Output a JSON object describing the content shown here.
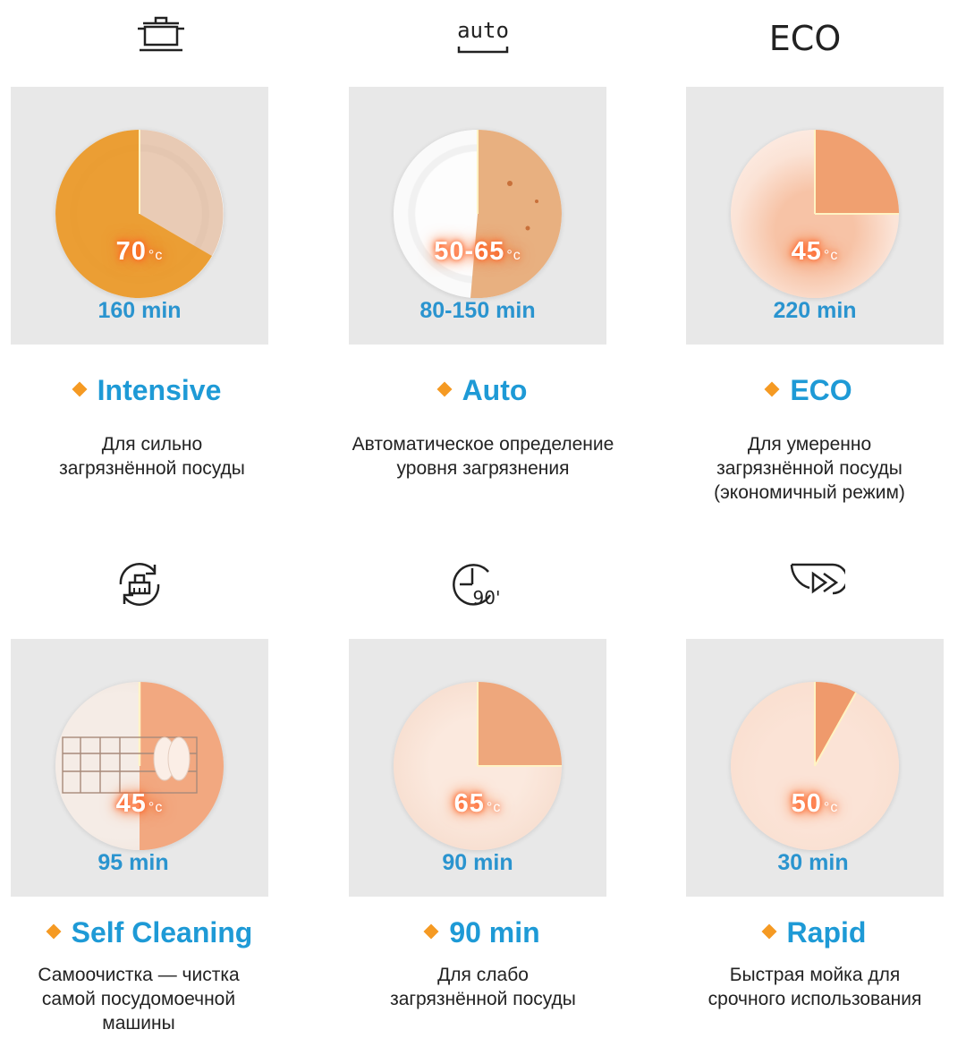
{
  "programs": [
    {
      "icon": "pot-icon",
      "temp_value": "70",
      "temp_unit": "°c",
      "fill_pct": 0.33,
      "duration": "160 min",
      "name": "Intensive",
      "description": "Для сильно\nзагрязнённой посуды"
    },
    {
      "icon": "auto-icon",
      "icon_text": "auto",
      "temp_value": "50-65",
      "temp_unit": "°c",
      "fill_pct": 0.42,
      "duration": "80-150 min",
      "name": "Auto",
      "description": "Автоматическое определение\nуровня загрязнения"
    },
    {
      "icon": "eco-icon",
      "icon_text": "ECO",
      "temp_value": "45",
      "temp_unit": "°c",
      "fill_pct": 0.25,
      "duration": "220 min",
      "name": "ECO",
      "description": "Для умеренно\nзагрязнённой посуды\n(экономичный режим)"
    },
    {
      "icon": "self-cleaning-icon",
      "temp_value": "45",
      "temp_unit": "°c",
      "fill_pct": 0.5,
      "duration": "95 min",
      "name": "Self Cleaning",
      "description": "Самоочистка — чистка\nсамой посудомоечной\nмашины"
    },
    {
      "icon": "clock-90-icon",
      "icon_text": "90'",
      "temp_value": "65",
      "temp_unit": "°c",
      "fill_pct": 0.25,
      "duration": "90 min",
      "name": "90 min",
      "description": "Для слабо\nзагрязнённой посуды"
    },
    {
      "icon": "rapid-icon",
      "temp_value": "50",
      "temp_unit": "°c",
      "fill_pct": 0.08,
      "duration": "30 min",
      "name": "Rapid",
      "description": "Быстрая мойка для\nсрочного использования"
    }
  ],
  "colors": {
    "accent_blue": "#1e9ad6",
    "diamond_orange": "#f59a23",
    "wedge_orange": "#ee8a45",
    "panel_grey": "#e8e8e8"
  }
}
